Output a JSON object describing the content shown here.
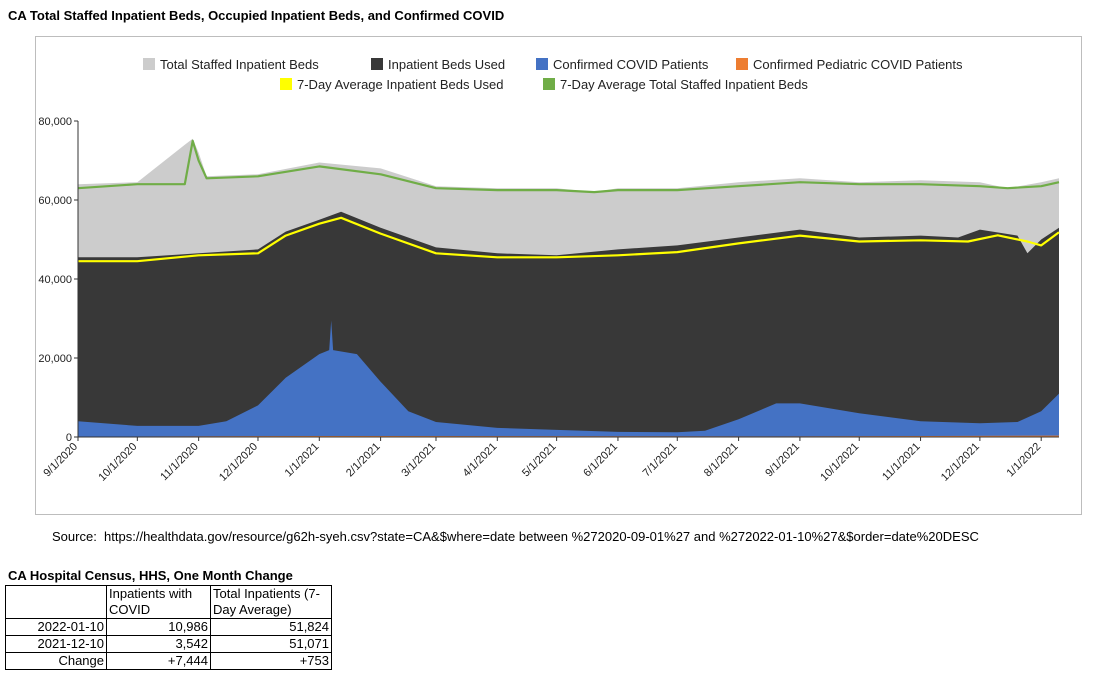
{
  "title": "CA Total Staffed Inpatient Beds, Occupied Inpatient Beds, and Confirmed COVID",
  "source_label": "Source:",
  "source_url": "https://healthdata.gov/resource/g62h-syeh.csv?state=CA&$where=date between %272020-09-01%27 and %272022-01-10%27&$order=date%20DESC",
  "chart_data": {
    "type": "area",
    "ylim": [
      0,
      80000
    ],
    "yticks": [
      0,
      20000,
      40000,
      60000,
      80000
    ],
    "ytick_labels": [
      "0",
      "20,000",
      "40,000",
      "60,000",
      "80,000"
    ],
    "xlim": [
      "2020-09-01",
      "2022-01-10"
    ],
    "xticks": [
      "2020-09-01",
      "2020-10-01",
      "2020-11-01",
      "2020-12-01",
      "2021-01-01",
      "2021-02-01",
      "2021-03-01",
      "2021-04-01",
      "2021-05-01",
      "2021-06-01",
      "2021-07-01",
      "2021-08-01",
      "2021-09-01",
      "2021-10-01",
      "2021-11-01",
      "2021-12-01",
      "2022-01-01"
    ],
    "xtick_labels": [
      "9/1/2020",
      "10/1/2020",
      "11/1/2020",
      "12/1/2020",
      "1/1/2021",
      "2/1/2021",
      "3/1/2021",
      "4/1/2021",
      "5/1/2021",
      "6/1/2021",
      "7/1/2021",
      "8/1/2021",
      "9/1/2021",
      "10/1/2021",
      "11/1/2021",
      "12/1/2021",
      "1/1/2022"
    ],
    "legend_position": "top",
    "grid": false,
    "series": [
      {
        "name": "Total Staffed Inpatient Beds",
        "kind": "area",
        "color": "#cccccc",
        "x": [
          "2020-09-01",
          "2020-10-01",
          "2020-10-25",
          "2020-10-29",
          "2020-11-01",
          "2020-11-05",
          "2020-12-01",
          "2021-01-01",
          "2021-02-01",
          "2021-03-01",
          "2021-04-01",
          "2021-05-01",
          "2021-05-20",
          "2021-06-01",
          "2021-07-01",
          "2021-08-01",
          "2021-09-01",
          "2021-10-01",
          "2021-11-01",
          "2021-12-01",
          "2021-12-15",
          "2022-01-01",
          "2022-01-10"
        ],
        "y": [
          64000,
          64500,
          74000,
          75500,
          72000,
          66000,
          66500,
          69500,
          68000,
          63500,
          63000,
          63000,
          62000,
          63000,
          63000,
          64500,
          65500,
          64500,
          65000,
          64500,
          63000,
          64500,
          65500
        ]
      },
      {
        "name": "Inpatient Beds Used",
        "kind": "area",
        "color": "#383838",
        "x": [
          "2020-09-01",
          "2020-10-01",
          "2020-11-01",
          "2020-12-01",
          "2020-12-15",
          "2021-01-01",
          "2021-01-12",
          "2021-02-01",
          "2021-03-01",
          "2021-04-01",
          "2021-05-01",
          "2021-06-01",
          "2021-07-01",
          "2021-08-01",
          "2021-09-01",
          "2021-10-01",
          "2021-11-01",
          "2021-11-20",
          "2021-12-01",
          "2021-12-20",
          "2021-12-25",
          "2022-01-01",
          "2022-01-10"
        ],
        "y": [
          45500,
          45500,
          46500,
          47500,
          52000,
          55000,
          57000,
          53000,
          48000,
          46500,
          46000,
          47500,
          48500,
          50500,
          52500,
          50500,
          51000,
          50500,
          52500,
          51000,
          46500,
          50000,
          53000
        ]
      },
      {
        "name": "Confirmed COVID Patients",
        "kind": "area",
        "color": "#4472c4",
        "x": [
          "2020-09-01",
          "2020-10-01",
          "2020-11-01",
          "2020-11-15",
          "2020-12-01",
          "2020-12-15",
          "2021-01-01",
          "2021-01-06",
          "2021-01-07",
          "2021-01-08",
          "2021-01-20",
          "2021-02-01",
          "2021-02-15",
          "2021-03-01",
          "2021-04-01",
          "2021-05-01",
          "2021-06-01",
          "2021-07-01",
          "2021-07-15",
          "2021-08-01",
          "2021-08-20",
          "2021-09-01",
          "2021-10-01",
          "2021-11-01",
          "2021-12-01",
          "2021-12-20",
          "2022-01-01",
          "2022-01-10"
        ],
        "y": [
          4000,
          2800,
          2800,
          4000,
          8000,
          15000,
          21000,
          22000,
          29500,
          22000,
          21000,
          14000,
          6500,
          3800,
          2300,
          1800,
          1300,
          1200,
          1600,
          4500,
          8500,
          8500,
          6000,
          4000,
          3500,
          3800,
          6500,
          10986
        ]
      },
      {
        "name": "Confirmed Pediatric COVID Patients",
        "kind": "area",
        "color": "#ed7d31",
        "x": [
          "2020-09-01",
          "2021-01-01",
          "2021-08-20",
          "2022-01-10"
        ],
        "y": [
          100,
          250,
          150,
          350
        ]
      },
      {
        "name": "7-Day Average Inpatient Beds Used",
        "kind": "line",
        "color": "#ffff00",
        "x": [
          "2020-09-01",
          "2020-10-01",
          "2020-11-01",
          "2020-12-01",
          "2020-12-15",
          "2021-01-01",
          "2021-01-12",
          "2021-02-01",
          "2021-03-01",
          "2021-04-01",
          "2021-05-01",
          "2021-06-01",
          "2021-07-01",
          "2021-08-01",
          "2021-09-01",
          "2021-10-01",
          "2021-11-01",
          "2021-11-25",
          "2021-12-10",
          "2021-12-25",
          "2022-01-01",
          "2022-01-10"
        ],
        "y": [
          44500,
          44500,
          46000,
          46500,
          51000,
          54000,
          55500,
          51500,
          46500,
          45500,
          45500,
          46000,
          46800,
          49000,
          51000,
          49500,
          49800,
          49500,
          51071,
          49500,
          48500,
          51824
        ]
      },
      {
        "name": "7-Day Average Total Staffed Inpatient Beds",
        "kind": "line",
        "color": "#70ad47",
        "x": [
          "2020-09-01",
          "2020-10-01",
          "2020-10-25",
          "2020-10-29",
          "2020-11-01",
          "2020-11-05",
          "2020-12-01",
          "2021-01-01",
          "2021-02-01",
          "2021-03-01",
          "2021-04-01",
          "2021-05-01",
          "2021-05-20",
          "2021-06-01",
          "2021-07-01",
          "2021-08-01",
          "2021-09-01",
          "2021-10-01",
          "2021-11-01",
          "2021-12-01",
          "2021-12-15",
          "2022-01-01",
          "2022-01-10"
        ],
        "y": [
          63000,
          64000,
          64000,
          75000,
          70000,
          65500,
          66000,
          68500,
          66500,
          63000,
          62500,
          62500,
          62000,
          62500,
          62500,
          63500,
          64500,
          64000,
          64000,
          63500,
          63000,
          63500,
          64500
        ]
      }
    ]
  },
  "table": {
    "title": "CA Hospital Census, HHS, One Month Change",
    "col1_header": "Inpatients with COVID",
    "col2_header": "Total Inpatients (7-Day Average)",
    "rows": [
      {
        "label": "2022-01-10",
        "col1": "10,986",
        "col2": "51,824"
      },
      {
        "label": "2021-12-10",
        "col1": "3,542",
        "col2": "51,071"
      },
      {
        "label": "Change",
        "col1": "+7,444",
        "col2": "+753"
      }
    ]
  }
}
